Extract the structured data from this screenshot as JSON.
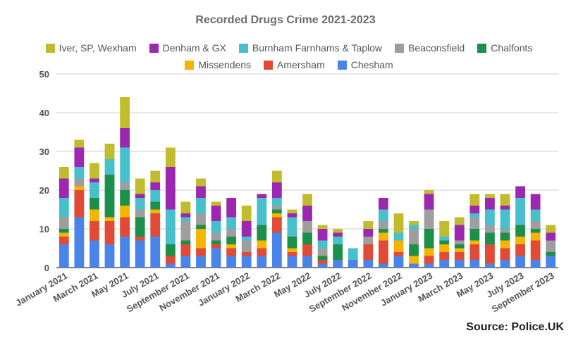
{
  "source_label": "Source: Police.UK",
  "chart_data": {
    "type": "bar",
    "stacked": true,
    "title": "Recorded Drugs Crime 2021-2023",
    "xlabel": "",
    "ylabel": "",
    "ylim": [
      0,
      50
    ],
    "yticks": [
      0,
      10,
      20,
      30,
      40,
      50
    ],
    "grid": true,
    "legend_position": "top",
    "categories": [
      "January 2021",
      "February 2021",
      "March 2021",
      "April 2021",
      "May 2021",
      "June 2021",
      "July 2021",
      "August 2021",
      "September 2021",
      "October 2021",
      "November 2021",
      "December 2021",
      "January 2022",
      "February 2022",
      "March 2022",
      "April 2022",
      "May 2022",
      "June 2022",
      "July 2022",
      "August 2022",
      "September 2022",
      "October 2022",
      "November 2022",
      "December 2022",
      "January 2023",
      "February 2023",
      "March 2023",
      "April 2023",
      "May 2023",
      "June 2023",
      "July 2023",
      "August 2023",
      "September 2023"
    ],
    "xtick_labels": [
      "January 2021",
      "",
      "March 2021",
      "",
      "May 2021",
      "",
      "July 2021",
      "",
      "September 2021",
      "",
      "November 2021",
      "",
      "January 2022",
      "",
      "March 2022",
      "",
      "May 2022",
      "",
      "July 2022",
      "",
      "September 2022",
      "",
      "November 2022",
      "",
      "January 2023",
      "",
      "March 2023",
      "",
      "May 2023",
      "",
      "July 2023",
      "",
      "September 2023"
    ],
    "series": [
      {
        "name": "Chesham",
        "color": "#4b84e8",
        "values": [
          6,
          13,
          7,
          6,
          8,
          7,
          8,
          1,
          3,
          3,
          5,
          3,
          3,
          3,
          9,
          3,
          3,
          1,
          2,
          2,
          2,
          1,
          3,
          1,
          1,
          2,
          2,
          2,
          1,
          2,
          3,
          2,
          3
        ]
      },
      {
        "name": "Amersham",
        "color": "#e04a36",
        "values": [
          2,
          7,
          5,
          6,
          5,
          1,
          6,
          2,
          3,
          2,
          1,
          2,
          1,
          2,
          4,
          1,
          3,
          1,
          0,
          0,
          4,
          6,
          1,
          0,
          2,
          2,
          2,
          4,
          5,
          3,
          3,
          5,
          0
        ]
      },
      {
        "name": "Missendens",
        "color": "#f5b400",
        "values": [
          1,
          1,
          3,
          1,
          3,
          0,
          1,
          0,
          0,
          5,
          0,
          1,
          0,
          2,
          1,
          1,
          0,
          0,
          0,
          0,
          0,
          2,
          3,
          2,
          2,
          2,
          1,
          1,
          0,
          2,
          2,
          2,
          0
        ]
      },
      {
        "name": "Chalfonts",
        "color": "#1c8f4a",
        "values": [
          1,
          0,
          3,
          11,
          4,
          5,
          2,
          3,
          1,
          1,
          1,
          2,
          0,
          4,
          1,
          3,
          3,
          1,
          4,
          0,
          0,
          1,
          0,
          3,
          5,
          1,
          1,
          3,
          3,
          2,
          3,
          1,
          1
        ]
      },
      {
        "name": "Beaconsfield",
        "color": "#9e9e9e",
        "values": [
          3,
          2,
          0,
          0,
          2,
          2,
          0,
          0,
          5,
          3,
          2,
          2,
          3,
          0,
          1,
          0,
          3,
          2,
          0,
          0,
          2,
          2,
          0,
          4,
          5,
          0,
          1,
          3,
          2,
          1,
          0,
          2,
          3
        ]
      },
      {
        "name": "Burnham Farnhams & Taplow",
        "color": "#47c0cc",
        "values": [
          5,
          3,
          4,
          4,
          9,
          3,
          3,
          9,
          1,
          4,
          3,
          3,
          1,
          7,
          2,
          5,
          0,
          2,
          2,
          3,
          0,
          3,
          2,
          1,
          0,
          1,
          0,
          1,
          4,
          5,
          7,
          3,
          0
        ]
      },
      {
        "name": "Denham & GX",
        "color": "#9c27b0",
        "values": [
          5,
          5,
          1,
          0,
          5,
          1,
          2,
          11,
          1,
          3,
          4,
          5,
          4,
          1,
          4,
          1,
          4,
          3,
          1,
          0,
          2,
          3,
          0,
          0,
          4,
          0,
          4,
          2,
          3,
          1,
          3,
          4,
          2
        ]
      },
      {
        "name": "Iver, SP, Wexham",
        "color": "#c0bc2e",
        "values": [
          3,
          2,
          4,
          4,
          8,
          4,
          3,
          5,
          3,
          2,
          1,
          0,
          4,
          0,
          3,
          1,
          3,
          1,
          1,
          0,
          2,
          0,
          5,
          1,
          1,
          4,
          2,
          3,
          1,
          3,
          0,
          0,
          2
        ]
      }
    ]
  }
}
